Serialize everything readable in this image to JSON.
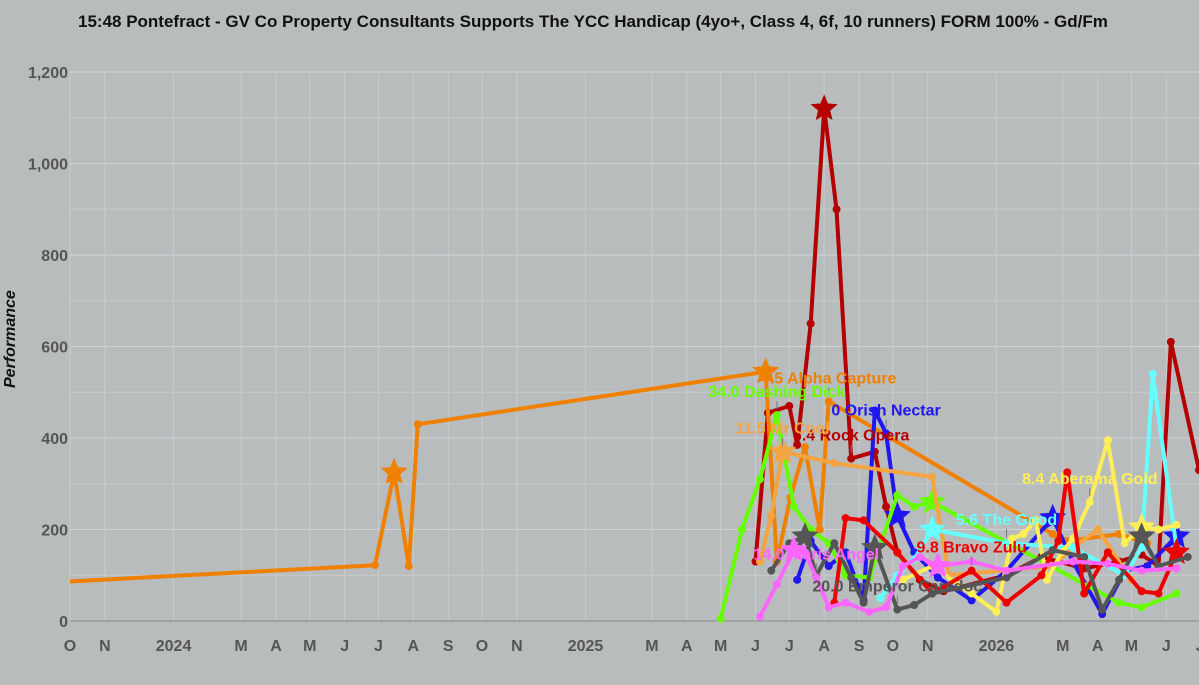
{
  "chart_data": {
    "type": "line",
    "title": "15:48 Pontefract - GV Co Property Consultants Supports The YCC Handicap (4yo+, Class 4, 6f, 10 runners) FORM 100% - Gd/Fm",
    "xlabel": "",
    "ylabel": "Performance",
    "ylim": [
      0,
      1200
    ],
    "yticks": [
      0,
      200,
      400,
      600,
      800,
      1000,
      1200
    ],
    "ytick_labels": [
      "0",
      "200",
      "400",
      "600",
      "800",
      "1,000",
      "1,200"
    ],
    "xlim": [
      "2023-10-01",
      "2026-06-30"
    ],
    "xticks": [
      {
        "date": "2023-10-01",
        "label": "O"
      },
      {
        "date": "2023-11-01",
        "label": "N"
      },
      {
        "date": "2024-01-01",
        "label": "2024"
      },
      {
        "date": "2024-03-01",
        "label": "M"
      },
      {
        "date": "2024-04-01",
        "label": "A"
      },
      {
        "date": "2024-05-01",
        "label": "M"
      },
      {
        "date": "2024-06-01",
        "label": "J"
      },
      {
        "date": "2024-07-01",
        "label": "J"
      },
      {
        "date": "2024-08-01",
        "label": "A"
      },
      {
        "date": "2024-09-01",
        "label": "S"
      },
      {
        "date": "2024-10-01",
        "label": "O"
      },
      {
        "date": "2024-11-01",
        "label": "N"
      },
      {
        "date": "2025-01-01",
        "label": "2025"
      },
      {
        "date": "2025-03-01",
        "label": "M"
      },
      {
        "date": "2025-04-01",
        "label": "A"
      },
      {
        "date": "2025-05-01",
        "label": "M"
      },
      {
        "date": "2025-06-01",
        "label": "J"
      },
      {
        "date": "2025-07-01",
        "label": "J"
      },
      {
        "date": "2025-08-01",
        "label": "A"
      },
      {
        "date": "2025-09-01",
        "label": "S"
      },
      {
        "date": "2025-10-01",
        "label": "O"
      },
      {
        "date": "2025-11-01",
        "label": "N"
      },
      {
        "date": "2026-01-01",
        "label": "2026"
      },
      {
        "date": "2026-03-01",
        "label": "M"
      },
      {
        "date": "2026-04-01",
        "label": "A"
      },
      {
        "date": "2026-05-01",
        "label": "M"
      },
      {
        "date": "2026-06-01",
        "label": "J"
      },
      {
        "date": "2026-07-01",
        "label": "J"
      }
    ],
    "grid": true,
    "legend": "labels at series peaks",
    "series": [
      {
        "name": "6.4 Rock Opera",
        "color": "#b50000",
        "label_at": 7,
        "x": [
          "2025-06-01",
          "2025-06-12",
          "2025-07-01",
          "2025-07-08",
          "2025-07-20",
          "2025-08-01",
          "2025-08-12",
          "2025-08-25",
          "2025-09-15",
          "2025-09-25",
          "2025-10-05",
          "2025-10-25",
          "2025-11-15",
          "2026-01-10",
          "2026-02-10",
          "2026-03-20",
          "2026-04-20",
          "2026-05-10",
          "2026-05-25",
          "2026-06-05",
          "2026-06-30"
        ],
        "y": [
          130,
          455,
          470,
          385,
          650,
          1120,
          900,
          355,
          370,
          250,
          150,
          90,
          65,
          100,
          140,
          115,
          130,
          145,
          120,
          610,
          330
        ],
        "markers": [
          {
            "i": 5,
            "shape": "star"
          }
        ]
      },
      {
        "name": "4.5 Alpha Capture",
        "color": "#f08000",
        "label_at": 10,
        "x": [
          "2023-09-20",
          "2024-06-28",
          "2024-07-15",
          "2024-07-28",
          "2024-08-05",
          "2025-06-10",
          "2025-06-20",
          "2025-07-02",
          "2025-07-15",
          "2025-07-28",
          "2025-08-05",
          "2026-02-20",
          "2026-03-05",
          "2026-04-20",
          "2026-05-15"
        ],
        "y": [
          85,
          122,
          325,
          120,
          430,
          545,
          130,
          270,
          380,
          200,
          480,
          190,
          175,
          190,
          170
        ],
        "markers": [
          {
            "i": 2,
            "shape": "star"
          },
          {
            "i": 5,
            "shape": "star"
          }
        ]
      },
      {
        "name": "0 Orish Nectar",
        "color": "#2016ee",
        "label_at": 6,
        "x": [
          "2025-07-08",
          "2025-07-20",
          "2025-08-05",
          "2025-08-20",
          "2025-09-05",
          "2025-09-15",
          "2025-09-25",
          "2025-10-05",
          "2025-10-20",
          "2025-11-10",
          "2025-12-10",
          "2026-01-10",
          "2026-02-20",
          "2026-03-10",
          "2026-04-05",
          "2026-04-25",
          "2026-05-15",
          "2026-06-10"
        ],
        "y": [
          90,
          175,
          120,
          150,
          45,
          460,
          410,
          230,
          150,
          95,
          45,
          110,
          225,
          130,
          15,
          110,
          120,
          185
        ],
        "markers": [
          {
            "i": 7,
            "shape": "star"
          },
          {
            "i": 12,
            "shape": "star"
          },
          {
            "i": 17,
            "shape": "star"
          }
        ]
      },
      {
        "name": "34.0 Dashing Dick",
        "color": "#66ff00",
        "label_at": 3,
        "x": [
          "2025-05-01",
          "2025-05-20",
          "2025-06-05",
          "2025-06-20",
          "2025-07-05",
          "2025-07-20",
          "2025-08-05",
          "2025-08-20",
          "2025-09-10",
          "2025-10-05",
          "2025-10-20",
          "2025-11-05",
          "2026-04-20",
          "2026-05-10",
          "2026-06-10"
        ],
        "y": [
          5,
          200,
          310,
          450,
          250,
          200,
          170,
          100,
          95,
          275,
          250,
          260,
          40,
          30,
          60
        ],
        "markers": [
          {
            "i": 11,
            "shape": "star"
          }
        ]
      },
      {
        "name": "11.5 Mr Cool",
        "color": "#f5a442",
        "label_at": 2,
        "x": [
          "2025-06-05",
          "2025-06-15",
          "2025-06-25",
          "2025-08-10",
          "2025-11-05",
          "2025-11-20",
          "2026-02-20",
          "2026-03-05",
          "2026-04-01",
          "2026-05-01"
        ],
        "y": [
          130,
          230,
          370,
          345,
          315,
          100,
          120,
          150,
          200,
          90
        ],
        "markers": [
          {
            "i": 2,
            "shape": "star"
          }
        ]
      },
      {
        "name": "5.6 The Good",
        "color": "#66ffff",
        "label_at": 4,
        "x": [
          "2025-09-20",
          "2025-10-05",
          "2025-10-20",
          "2025-11-05",
          "2026-01-10",
          "2026-03-10",
          "2026-04-25",
          "2026-05-10",
          "2026-05-20",
          "2026-06-10"
        ],
        "y": [
          50,
          100,
          135,
          200,
          170,
          160,
          100,
          160,
          540,
          160
        ],
        "markers": [
          {
            "i": 3,
            "shape": "star"
          }
        ]
      },
      {
        "name": "8.4 Aberama Gold",
        "color": "#ffee55",
        "label_at": 10,
        "x": [
          "2025-10-10",
          "2025-11-05",
          "2025-12-10",
          "2026-01-01",
          "2026-01-15",
          "2026-01-25",
          "2026-02-05",
          "2026-02-15",
          "2026-02-28",
          "2026-03-10",
          "2026-03-25",
          "2026-04-10",
          "2026-04-25",
          "2026-05-10",
          "2026-05-25",
          "2026-06-10"
        ],
        "y": [
          90,
          120,
          60,
          20,
          180,
          190,
          220,
          90,
          150,
          180,
          260,
          395,
          170,
          205,
          200,
          210
        ],
        "markers": [
          {
            "i": 13,
            "shape": "star"
          }
        ]
      },
      {
        "name": "9.8 Bravo Zulu",
        "color": "#ee0000",
        "label_at": 5,
        "x": [
          "2025-08-10",
          "2025-08-20",
          "2025-09-05",
          "2025-10-05",
          "2025-11-05",
          "2025-12-10",
          "2026-01-10",
          "2026-02-10",
          "2026-02-25",
          "2026-03-05",
          "2026-03-20",
          "2026-04-10",
          "2026-05-10",
          "2026-05-25",
          "2026-06-10"
        ],
        "y": [
          40,
          225,
          220,
          150,
          60,
          110,
          40,
          100,
          175,
          325,
          60,
          150,
          65,
          60,
          150
        ],
        "markers": [
          {
            "i": 14,
            "shape": "star"
          }
        ]
      },
      {
        "name": "20.0 Emperor Caradoc",
        "color": "#555555",
        "label_at": 8,
        "x": [
          "2025-06-15",
          "2025-07-01",
          "2025-07-15",
          "2025-07-25",
          "2025-08-10",
          "2025-08-25",
          "2025-09-05",
          "2025-09-15",
          "2025-10-05",
          "2025-10-20",
          "2025-11-05",
          "2026-01-10",
          "2026-02-20",
          "2026-03-20",
          "2026-04-05",
          "2026-04-20",
          "2026-05-10",
          "2026-05-25",
          "2026-06-20"
        ],
        "y": [
          110,
          170,
          185,
          100,
          170,
          95,
          40,
          160,
          25,
          35,
          60,
          95,
          155,
          140,
          25,
          90,
          185,
          120,
          140
        ],
        "markers": [
          {
            "i": 2,
            "shape": "star"
          },
          {
            "i": 7,
            "shape": "star"
          },
          {
            "i": 16,
            "shape": "star"
          }
        ]
      },
      {
        "name": "14.0 Maris Angel",
        "color": "#ff66ff",
        "label_at": 4,
        "x": [
          "2025-06-05",
          "2025-06-20",
          "2025-07-05",
          "2025-07-15",
          "2025-07-25",
          "2025-08-05",
          "2025-08-20",
          "2025-09-10",
          "2025-09-25",
          "2025-10-10",
          "2025-10-25",
          "2025-11-10",
          "2025-12-10",
          "2026-01-10",
          "2026-03-10",
          "2026-04-10",
          "2026-05-10",
          "2026-06-10"
        ],
        "y": [
          10,
          80,
          155,
          150,
          95,
          30,
          40,
          20,
          30,
          120,
          140,
          120,
          130,
          110,
          130,
          125,
          110,
          115
        ],
        "markers": [
          {
            "i": 2,
            "shape": "star"
          },
          {
            "i": 11,
            "shape": "star"
          }
        ]
      }
    ]
  }
}
